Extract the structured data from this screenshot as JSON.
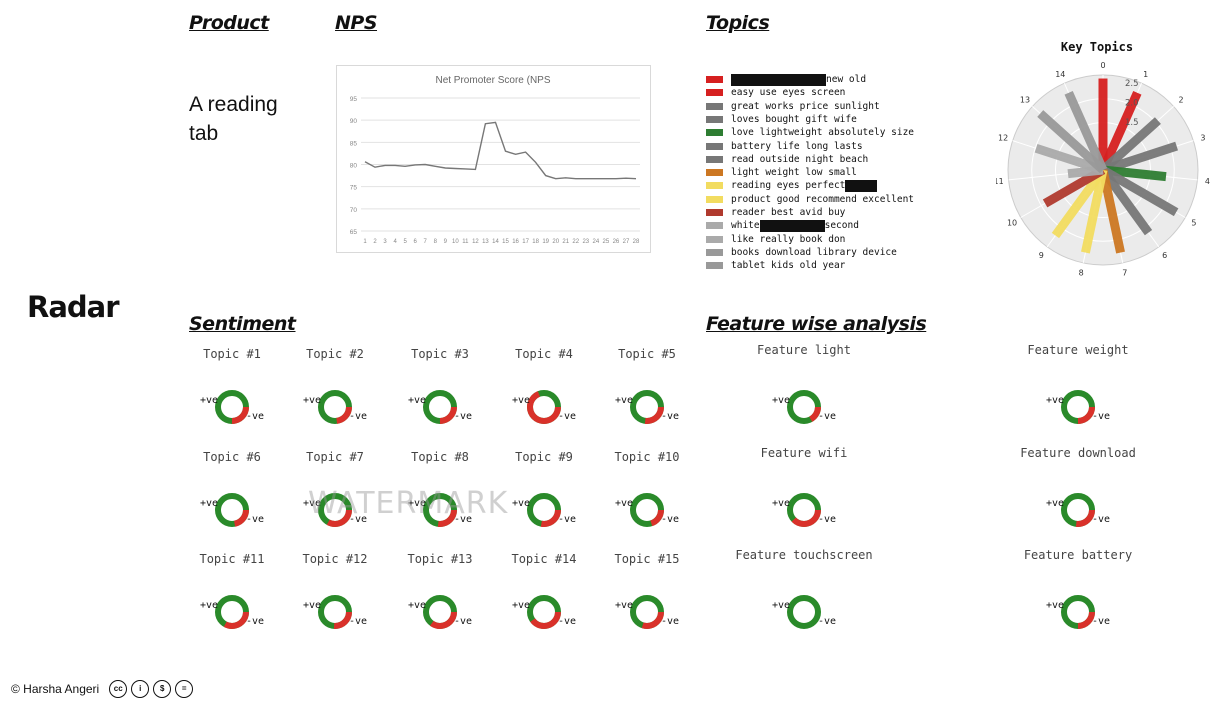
{
  "headers": {
    "product": "Product",
    "nps": "NPS",
    "topics": "Topics",
    "sentiment": "Sentiment",
    "feature": "Feature wise analysis",
    "radar": "Radar"
  },
  "product_text": "A reading tab",
  "watermark": "WATERMARK",
  "footer": {
    "copyright": "© Harsha Angeri",
    "icons": [
      "cc-icon",
      "by-icon",
      "nc-icon",
      "nd-icon"
    ],
    "icon_glyphs": [
      "cc",
      "i",
      "$",
      "="
    ]
  },
  "chart_data": [
    {
      "type": "line",
      "title": "Net Promoter Score (NPS",
      "x": [
        1,
        2,
        3,
        4,
        5,
        6,
        7,
        8,
        9,
        10,
        11,
        12,
        13,
        14,
        15,
        16,
        17,
        18,
        19,
        20,
        21,
        22,
        23,
        24,
        25,
        26,
        27,
        28
      ],
      "values": [
        80.6,
        79.4,
        79.8,
        79.8,
        79.6,
        79.9,
        80.0,
        79.6,
        79.2,
        79.1,
        79.0,
        78.9,
        89.2,
        89.5,
        83.0,
        82.3,
        82.8,
        80.5,
        77.5,
        76.8,
        77.0,
        76.8,
        76.8,
        76.8,
        76.8,
        76.8,
        76.9,
        76.8
      ],
      "ylim": [
        65,
        95
      ],
      "yticks": [
        65,
        70,
        75,
        80,
        85,
        90,
        95
      ],
      "grid": true,
      "color": "#777777"
    },
    {
      "type": "radar-bar",
      "title": "Key Topics",
      "axis_labels": [
        "0",
        "1",
        "2",
        "3",
        "4",
        "5",
        "6",
        "7",
        "8",
        "9",
        "10",
        "11",
        "12",
        "13",
        "14"
      ],
      "radial_ticks": [
        "2.5",
        "2.0",
        "1.5"
      ],
      "values": [
        2.6,
        2.4,
        2.1,
        2.2,
        1.8,
        2.4,
        2.2,
        2.4,
        2.4,
        2.3,
        1.9,
        1.0,
        2.0,
        2.4,
        2.4
      ],
      "colors": [
        "#d62020",
        "#d62020",
        "#777777",
        "#777777",
        "#2e7d32",
        "#777777",
        "#777777",
        "#cc7722",
        "#f2dc60",
        "#f2dc60",
        "#b03a2e",
        "#aaaaaa",
        "#aaaaaa",
        "#999999",
        "#999999"
      ]
    },
    {
      "type": "pie",
      "name": "sentiment-donuts",
      "positive_label": "+ve",
      "negative_label": "-ve",
      "positive_color": "#2a8a2a",
      "negative_color": "#d9312a",
      "topics": [
        {
          "label": "Topic #1",
          "pos": 0.75
        },
        {
          "label": "Topic #2",
          "pos": 0.77
        },
        {
          "label": "Topic #3",
          "pos": 0.75
        },
        {
          "label": "Topic #4",
          "pos": 0.31
        },
        {
          "label": "Topic #5",
          "pos": 0.73
        },
        {
          "label": "Topic #6",
          "pos": 0.78
        },
        {
          "label": "Topic #7",
          "pos": 0.67
        },
        {
          "label": "Topic #8",
          "pos": 0.73
        },
        {
          "label": "Topic #9",
          "pos": 0.72
        },
        {
          "label": "Topic #10",
          "pos": 0.8
        },
        {
          "label": "Topic #11",
          "pos": 0.67
        },
        {
          "label": "Topic #12",
          "pos": 0.74
        },
        {
          "label": "Topic #13",
          "pos": 0.65
        },
        {
          "label": "Topic #14",
          "pos": 0.6
        },
        {
          "label": "Topic #15",
          "pos": 0.7
        }
      ],
      "features": [
        {
          "label": "Feature light",
          "pos": 0.83
        },
        {
          "label": "Feature weight",
          "pos": 0.75
        },
        {
          "label": "Feature wifi",
          "pos": 0.62
        },
        {
          "label": "Feature download",
          "pos": 0.73
        },
        {
          "label": "Feature touchscreen",
          "pos": 1.0
        },
        {
          "label": "Feature battery",
          "pos": 0.75
        }
      ]
    }
  ],
  "topics_legend": [
    {
      "color": "#d62020",
      "pre": "",
      "redact": 95,
      "post": "new old"
    },
    {
      "color": "#d62020",
      "pre": "easy use eyes screen",
      "redact": 0,
      "post": ""
    },
    {
      "color": "#777777",
      "pre": "great works price sunlight",
      "redact": 0,
      "post": ""
    },
    {
      "color": "#777777",
      "pre": "loves bought gift wife",
      "redact": 0,
      "post": ""
    },
    {
      "color": "#2e7d32",
      "pre": "love lightweight absolutely size",
      "redact": 0,
      "post": ""
    },
    {
      "color": "#777777",
      "pre": "battery life long lasts",
      "redact": 0,
      "post": ""
    },
    {
      "color": "#777777",
      "pre": "read outside night beach",
      "redact": 0,
      "post": ""
    },
    {
      "color": "#cc7722",
      "pre": "light weight low small",
      "redact": 0,
      "post": ""
    },
    {
      "color": "#f2dc60",
      "pre": "reading eyes perfect",
      "redact": 32,
      "post": ""
    },
    {
      "color": "#f2dc60",
      "pre": "product good recommend excellent",
      "redact": 0,
      "post": ""
    },
    {
      "color": "#b03a2e",
      "pre": "reader best avid buy",
      "redact": 0,
      "post": ""
    },
    {
      "color": "#aaaaaa",
      "pre": "white",
      "redact": 65,
      "post": "second"
    },
    {
      "color": "#aaaaaa",
      "pre": "like really book don",
      "redact": 0,
      "post": ""
    },
    {
      "color": "#999999",
      "pre": "books download library device",
      "redact": 0,
      "post": ""
    },
    {
      "color": "#999999",
      "pre": "tablet kids old year",
      "redact": 0,
      "post": ""
    }
  ]
}
